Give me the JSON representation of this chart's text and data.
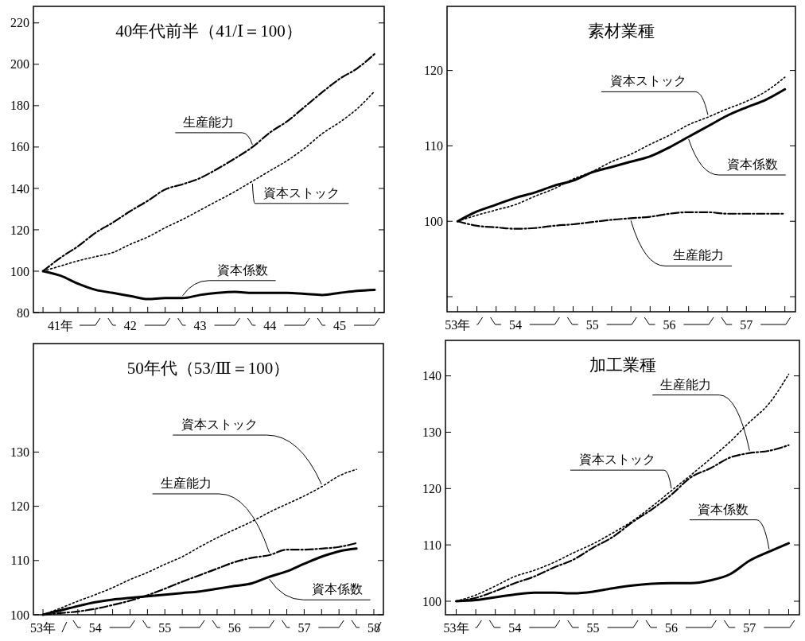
{
  "chart_data": [
    {
      "type": "line",
      "title": "40年代前半（41/Ⅰ＝100）",
      "categories": [
        null,
        "41年",
        null,
        null,
        null,
        "42",
        null,
        null,
        null,
        "43",
        null,
        null,
        null,
        "44",
        null,
        null,
        null,
        "45",
        null,
        null
      ],
      "ylim": [
        80,
        228
      ],
      "yticks": [
        80,
        100,
        120,
        140,
        160,
        180,
        200,
        220
      ],
      "series": [
        {
          "name": "生産能力",
          "color": "#000000",
          "line_style": "dashed",
          "values": [
            100,
            106.5,
            112,
            118.5,
            123.5,
            129,
            134,
            139.5,
            142,
            145,
            149.5,
            154.5,
            160,
            167,
            172.5,
            179.5,
            186.5,
            193,
            198,
            205
          ]
        },
        {
          "name": "資本ストック",
          "color": "#000000",
          "line_style": "dotted",
          "values": [
            100,
            102.5,
            105,
            107,
            109,
            113,
            116.5,
            121,
            125,
            129.5,
            134,
            138.5,
            143.5,
            148.5,
            153.5,
            159.5,
            166.5,
            172,
            178.5,
            187
          ]
        },
        {
          "name": "資本係数",
          "color": "#000000",
          "line_style": "solid",
          "values": [
            100,
            97.8,
            94,
            91,
            89.5,
            88,
            86.5,
            87,
            87,
            88.5,
            89.5,
            90,
            89.5,
            89.5,
            89.5,
            89,
            88.5,
            89.5,
            90.5,
            91
          ]
        }
      ]
    },
    {
      "type": "line",
      "title": "素材業種",
      "categories": [
        "53年",
        null,
        null,
        "54",
        null,
        null,
        null,
        "55",
        null,
        null,
        null,
        "56",
        null,
        null,
        null,
        "57",
        null,
        null
      ],
      "ylim": [
        88,
        128.5
      ],
      "yticks": [
        {
          "value": 90,
          "label": null
        },
        100,
        110,
        120
      ],
      "series": [
        {
          "name": "生産能力",
          "color": "#000000",
          "line_style": "dashed",
          "values": [
            100,
            99.4,
            99.2,
            99,
            99.1,
            99.4,
            99.6,
            99.9,
            100.2,
            100.4,
            100.6,
            101,
            101.2,
            101.2,
            101,
            101,
            101,
            101
          ]
        },
        {
          "name": "資本ストック",
          "color": "#000000",
          "line_style": "dotted",
          "values": [
            100,
            100.8,
            101.5,
            102.2,
            103.3,
            104.3,
            105.6,
            106.6,
            107.9,
            108.9,
            110.2,
            111.4,
            112.8,
            113.8,
            114.9,
            115.9,
            117.2,
            119.1
          ]
        },
        {
          "name": "資本係数",
          "color": "#000000",
          "line_style": "solid",
          "values": [
            100,
            101.3,
            102.2,
            103.1,
            103.8,
            104.7,
            105.4,
            106.5,
            107.2,
            107.9,
            108.6,
            109.8,
            111.2,
            112.6,
            114,
            115.1,
            116.1,
            117.5
          ]
        }
      ]
    },
    {
      "type": "line",
      "title": "50年代（53/Ⅲ＝100）",
      "categories": [
        "53年",
        null,
        null,
        "54",
        null,
        null,
        null,
        "55",
        null,
        null,
        null,
        "56",
        null,
        null,
        null,
        "57",
        null,
        null,
        null,
        "58"
      ],
      "ylim": [
        100,
        150
      ],
      "yticks": [
        100,
        110,
        120,
        130
      ],
      "series": [
        {
          "name": "資本ストック",
          "color": "#000000",
          "line_style": "dotted",
          "values": [
            100,
            101.2,
            102.5,
            103.7,
            105,
            106.5,
            107.8,
            109.3,
            110.7,
            112.5,
            114.2,
            115.7,
            117.2,
            118.9,
            120.4,
            121.9,
            123.6,
            125.6,
            126.8,
            null
          ]
        },
        {
          "name": "生産能力",
          "color": "#000000",
          "line_style": "dashed",
          "values": [
            100,
            100.3,
            100.6,
            101.1,
            101.8,
            102.6,
            103.6,
            104.8,
            106.1,
            107.3,
            108.5,
            109.7,
            110.5,
            111,
            112,
            112,
            112.2,
            112.5,
            113.2,
            null
          ]
        },
        {
          "name": "資本係数",
          "color": "#000000",
          "line_style": "solid",
          "values": [
            100,
            100.8,
            101.6,
            102.3,
            102.8,
            103.1,
            103.4,
            103.7,
            104,
            104.3,
            104.8,
            105.3,
            105.8,
            107,
            108,
            109.4,
            110.7,
            111.7,
            112.2,
            null
          ]
        }
      ]
    },
    {
      "type": "line",
      "title": "加工業種",
      "categories": [
        "53年",
        null,
        null,
        "54",
        null,
        null,
        null,
        "55",
        null,
        null,
        null,
        "56",
        null,
        null,
        null,
        "57",
        null,
        null
      ],
      "ylim": [
        97.6,
        146.3
      ],
      "yticks": [
        100,
        110,
        120,
        130,
        140
      ],
      "series": [
        {
          "name": "生産能力",
          "color": "#000000",
          "line_style": "dashed",
          "values": [
            100,
            100.6,
            101.8,
            103.2,
            104.4,
            106,
            107.4,
            109.5,
            111.4,
            114,
            116.3,
            118.9,
            122,
            123.6,
            125.5,
            126.3,
            126.7,
            127.7
          ]
        },
        {
          "name": "資本ストック",
          "color": "#000000",
          "line_style": "dotted",
          "values": [
            100,
            101.1,
            102.7,
            104.4,
            105.5,
            106.9,
            108.6,
            110.2,
            112.1,
            114.2,
            116.8,
            119.6,
            122.4,
            125.3,
            128.3,
            131.8,
            135.1,
            140.3
          ]
        },
        {
          "name": "資本係数",
          "color": "#000000",
          "line_style": "solid",
          "values": [
            100,
            100.2,
            100.7,
            101.2,
            101.5,
            101.5,
            101.4,
            101.7,
            102.3,
            102.8,
            103.1,
            103.2,
            103.2,
            103.7,
            104.8,
            107.2,
            108.8,
            110.3
          ]
        }
      ]
    }
  ]
}
